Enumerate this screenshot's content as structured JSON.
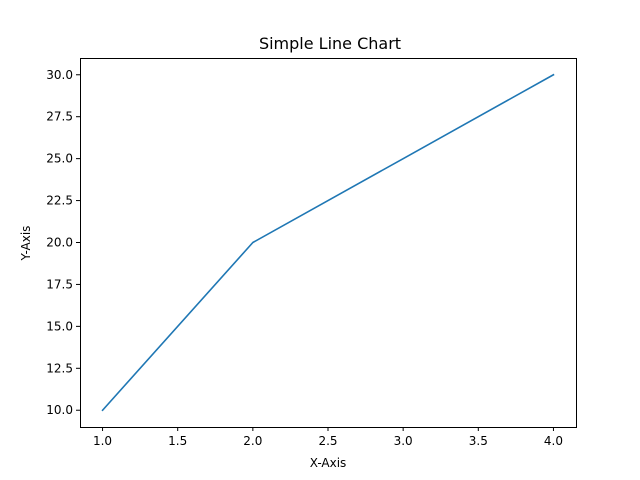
{
  "chart_data": {
    "type": "line",
    "title": "Simple Line Chart",
    "xlabel": "X-Axis",
    "ylabel": "Y-Axis",
    "x": [
      1,
      2,
      3,
      4
    ],
    "series": [
      {
        "values": [
          10,
          20,
          25,
          30
        ],
        "color": "#1f77b4"
      }
    ],
    "xlim": [
      0.85,
      4.15
    ],
    "ylim": [
      9.0,
      31.0
    ],
    "xticks": [
      1.0,
      1.5,
      2.0,
      2.5,
      3.0,
      3.5,
      4.0
    ],
    "xtick_labels": [
      "1.0",
      "1.5",
      "2.0",
      "2.5",
      "3.0",
      "3.5",
      "4.0"
    ],
    "yticks": [
      10.0,
      12.5,
      15.0,
      17.5,
      20.0,
      22.5,
      25.0,
      27.5,
      30.0
    ],
    "ytick_labels": [
      "10.0",
      "12.5",
      "15.0",
      "17.5",
      "20.0",
      "22.5",
      "25.0",
      "27.5",
      "30.0"
    ],
    "grid": false,
    "legend": false
  }
}
